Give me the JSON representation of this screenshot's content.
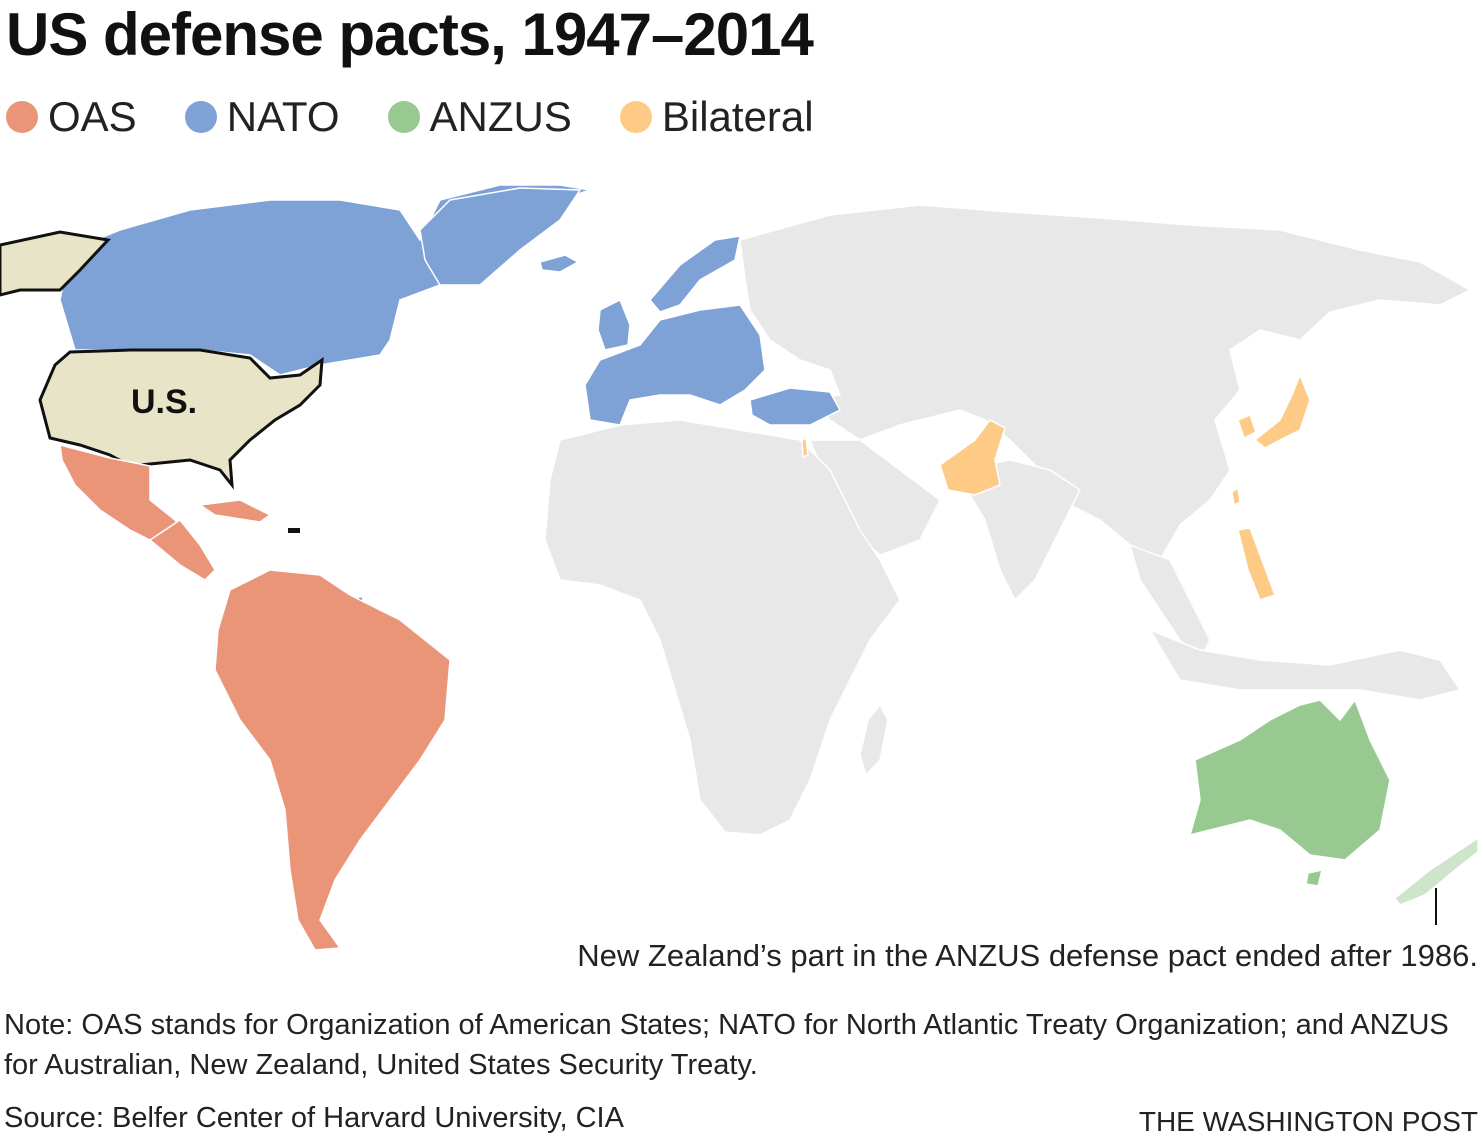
{
  "title": "US defense pacts, 1947–2014",
  "legend": [
    {
      "label": "OAS",
      "color": "#ea9478"
    },
    {
      "label": "NATO",
      "color": "#7ea1d6"
    },
    {
      "label": "ANZUS",
      "color": "#98c991"
    },
    {
      "label": "Bilateral",
      "color": "#fdcb86"
    }
  ],
  "colors": {
    "us": "#e8e4c8",
    "other": "#e8e8e8",
    "nz_former": "#cfe5cb",
    "border": "#ffffff"
  },
  "map": {
    "us_label": "U.S.",
    "nz_note": "New Zealand’s part in the ANZUS defense pact ended after 1986."
  },
  "note": "Note: OAS stands for Organization of American States; NATO for North Atlantic Treaty Organization; and ANZUS for Australian, New Zealand, United States Security Treaty.",
  "source": "Source: Belfer Center of Harvard University, CIA",
  "credit": "THE WASHINGTON POST"
}
